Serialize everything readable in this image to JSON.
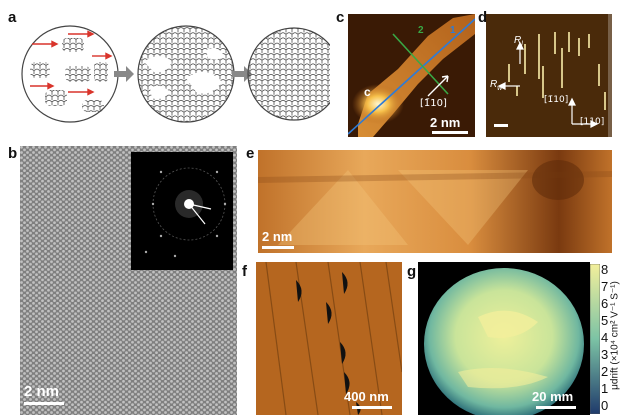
{
  "figure": {
    "panel_labels": {
      "a": "a",
      "b": "b",
      "c": "c",
      "d": "d",
      "e": "e",
      "f": "f",
      "g": "g"
    },
    "panel_c": {
      "scale_bar": "2 nm",
      "line_labels": [
        "2",
        "1"
      ],
      "marker": "c",
      "direction": "[1̄10]"
    },
    "panel_d": {
      "axis_labels": [
        "R",
        "R",
        "[1̄10]",
        "[110]"
      ],
      "axis_subscripts": [
        "l",
        "w"
      ]
    },
    "panel_b": {
      "scale_bar": "2 nm"
    },
    "panel_e": {
      "scale_bar": "2 nm"
    },
    "panel_f": {
      "scale_bar": "400 nm"
    },
    "panel_g": {
      "scale_bar": "20 mm",
      "colorbar_ticks": [
        "8",
        "7",
        "6",
        "5",
        "4",
        "3",
        "2",
        "1",
        "0"
      ],
      "colorbar_label": "μdrift (×10⁴ cm² V⁻¹ S⁻¹)"
    },
    "colors": {
      "afm_dark": "#3a1a05",
      "afm_mid": "#b5651d",
      "afm_light": "#f4d58d",
      "mobility_low": "#1f5f6b",
      "mobility_high": "#f3ef9b"
    }
  }
}
